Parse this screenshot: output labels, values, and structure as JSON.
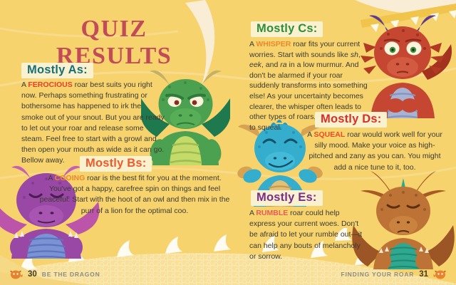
{
  "page": {
    "title": "QUIZ RESULTS",
    "background_color": "#F7D36E",
    "title_color": "#C34B58",
    "heading_chip_color": "#FAF2CF"
  },
  "sections": [
    {
      "id": "as",
      "heading": "Mostly As:",
      "heading_color": "#166F7B",
      "keyword": "FEROCIOUS",
      "keyword_color": "#E6402A",
      "body": [
        {
          "t": "A ",
          "s": "plain"
        },
        {
          "t": "FEROCIOUS",
          "s": "keyword",
          "c": "#E6402A"
        },
        {
          "t": " roar best suits you right now. Perhaps something frustrating or bothersome has happened to irk the smoke out of your snout. But you are ready to let out your roar and release some steam. Feel free to start with a growl and then open your mouth as wide as it can go. Bellow away.",
          "s": "plain"
        }
      ]
    },
    {
      "id": "bs",
      "heading": "Mostly Bs:",
      "heading_color": "#EF5A2D",
      "keyword": "COOING",
      "keyword_color": "#F0872B",
      "body": [
        {
          "t": "A ",
          "s": "plain"
        },
        {
          "t": "COOING",
          "s": "keyword",
          "c": "#F0872B"
        },
        {
          "t": " roar is the best fit for you at the moment. You've got a happy, carefree spin on things and feel peaceful. Start with the hoot of an owl and then mix in the purr of a lion for the optimal coo.",
          "s": "plain"
        }
      ]
    },
    {
      "id": "cs",
      "heading": "Mostly Cs:",
      "heading_color": "#2E8C3F",
      "keyword": "WHISPER",
      "keyword_color": "#F0872B",
      "body": [
        {
          "t": "A ",
          "s": "plain"
        },
        {
          "t": "WHISPER",
          "s": "keyword",
          "c": "#F0872B"
        },
        {
          "t": " roar fits your current worries. Start with sounds like ",
          "s": "plain"
        },
        {
          "t": "sh",
          "s": "italic"
        },
        {
          "t": ", ",
          "s": "plain"
        },
        {
          "t": "eek",
          "s": "italic"
        },
        {
          "t": ", and ",
          "s": "plain"
        },
        {
          "t": "ra",
          "s": "italic"
        },
        {
          "t": " in a low murmur. And don't be alarmed if your roar suddenly transforms into something else! As your uncertainty becomes clearer, the whisper often leads to other types of roars, from ferocious to squeal.",
          "s": "plain"
        }
      ]
    },
    {
      "id": "ds",
      "heading": "Mostly Ds:",
      "heading_color": "#DA2F27",
      "keyword": "SQUEAL",
      "keyword_color": "#EE4A22",
      "body": [
        {
          "t": "A ",
          "s": "plain"
        },
        {
          "t": "SQUEAL",
          "s": "keyword",
          "c": "#EE4A22"
        },
        {
          "t": " roar would work well for your silly mood. Make your voice as high-pitched and zany as you can. You might add a nice tune to it, too.",
          "s": "plain"
        }
      ]
    },
    {
      "id": "es",
      "heading": "Mostly Es:",
      "heading_color": "#7B2C87",
      "keyword": "RUMBLE",
      "keyword_color": "#E85C55",
      "body": [
        {
          "t": "A ",
          "s": "plain"
        },
        {
          "t": "RUMBLE",
          "s": "keyword",
          "c": "#E85C55"
        },
        {
          "t": " roar could help express your current woes. Don't be afraid to let your rumble out—it can help any bouts of melancholy or sorrow.",
          "s": "plain"
        }
      ]
    }
  ],
  "dragons": [
    {
      "name": "angry-green-dragon",
      "mood": "ferocious",
      "body_color": "#4CA150",
      "wing_color": "#1E7A4E",
      "horn_color": "#C6AF67",
      "belly_color": "#C4DB69"
    },
    {
      "name": "peaceful-purple-dragon",
      "mood": "cooing",
      "body_color": "#9A48A5",
      "wing_color": "#BC55A9",
      "horn_color": "#C75FB3",
      "belly_color": "#7C93D3"
    },
    {
      "name": "worried-red-dragon",
      "mood": "whisper",
      "body_color": "#C64731",
      "wing_color": "#A3321E",
      "horn_color": "#5C3B90",
      "belly_color": "#A8B3D4"
    },
    {
      "name": "silly-blue-dragon",
      "mood": "squeal",
      "body_color": "#35AECE",
      "wing_color": "#D8A253",
      "horn_color": "#D8A253",
      "belly_color": "#E4C077"
    },
    {
      "name": "sad-orange-dragon",
      "mood": "rumble",
      "body_color": "#BE7336",
      "wing_color": "#9C5524",
      "horn_color": "#A85A24",
      "belly_color": "#2FA88F"
    }
  ],
  "footer": {
    "left_page_number": "30",
    "left_label": "BE THE DRAGON",
    "right_label": "FINDING YOUR ROAR",
    "right_page_number": "31"
  }
}
